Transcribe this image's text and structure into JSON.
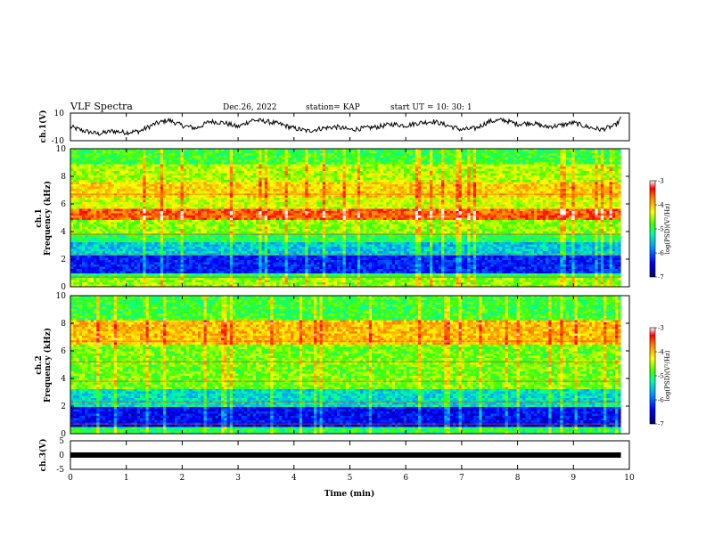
{
  "header": {
    "title": "VLF Spectra",
    "date": "Dec.26, 2022",
    "station": "station= KAP",
    "start": "start  UT  =    10: 30: 1"
  },
  "colors": {
    "spectrum": [
      "#000066",
      "#0000ff",
      "#0090ff",
      "#00e0e0",
      "#00ff60",
      "#80ff00",
      "#ffff00",
      "#ffa000",
      "#ff0000",
      "#ffffff"
    ]
  },
  "chart_data": [
    {
      "type": "line",
      "ylabel": "ch.1(V)",
      "xlim": [
        0,
        10
      ],
      "ylim": [
        -10,
        10
      ],
      "y_ticks": [
        "10",
        "-10"
      ],
      "series": [
        {
          "x": [
            0,
            0.25,
            0.5,
            0.75,
            1.0,
            1.25,
            1.5,
            1.75,
            2.0,
            2.25,
            2.5,
            2.75,
            3.0,
            3.25,
            3.5,
            3.75,
            4.0,
            4.25,
            4.5,
            4.75,
            5.0,
            5.25,
            5.5,
            5.75,
            6.0,
            6.25,
            6.5,
            6.75,
            7.0,
            7.25,
            7.5,
            7.75,
            8.0,
            8.25,
            8.5,
            8.75,
            9.0,
            9.25,
            9.5,
            9.75,
            9.85
          ],
          "values": [
            0,
            -3,
            -5,
            -3,
            -4,
            -3,
            2,
            5,
            1,
            -1,
            4,
            3,
            0,
            5,
            4,
            2,
            -1,
            -3,
            -1,
            0,
            -2,
            -1,
            0,
            2,
            1,
            3,
            4,
            1,
            -2,
            -1,
            4,
            5,
            2,
            3,
            0,
            1,
            3,
            0,
            -2,
            1,
            6
          ]
        }
      ]
    },
    {
      "type": "heatmap",
      "ylabel": "ch.1\nFrequency (kHz)",
      "xlim": [
        0,
        10
      ],
      "ylim": [
        0,
        10
      ],
      "y_ticks": [
        "0",
        "2",
        "4",
        "6",
        "8",
        "10"
      ],
      "colorbar": {
        "label": "log(PSD)(V²/Hz)",
        "ticks": [
          "-3",
          "-4",
          "-5",
          "-6",
          "-7"
        ],
        "range": [
          -7,
          -3
        ]
      },
      "bands": [
        {
          "f": [
            0.0,
            0.6
          ],
          "level": -4.6
        },
        {
          "f": [
            0.6,
            1.0
          ],
          "level": -5.0
        },
        {
          "f": [
            1.0,
            2.2
          ],
          "level": -6.3
        },
        {
          "f": [
            2.2,
            3.3
          ],
          "level": -5.5
        },
        {
          "f": [
            3.3,
            3.9
          ],
          "level": -5.0
        },
        {
          "f": [
            3.9,
            4.8
          ],
          "level": -4.6
        },
        {
          "f": [
            4.8,
            5.6
          ],
          "level": -3.6
        },
        {
          "f": [
            5.6,
            6.5
          ],
          "level": -4.4
        },
        {
          "f": [
            6.5,
            7.5
          ],
          "level": -4.1
        },
        {
          "f": [
            7.5,
            8.8
          ],
          "level": -4.5
        },
        {
          "f": [
            8.8,
            10.0
          ],
          "level": -4.9
        }
      ]
    },
    {
      "type": "heatmap",
      "ylabel": "ch.2\nFrequency (kHz)",
      "xlim": [
        0,
        10
      ],
      "ylim": [
        0,
        10
      ],
      "y_ticks": [
        "0",
        "2",
        "4",
        "6",
        "8",
        "10"
      ],
      "colorbar": {
        "label": "log(PSD)(V²/Hz)",
        "ticks": [
          "-3",
          "-4",
          "-5",
          "-6",
          "-7"
        ],
        "range": [
          -7,
          -3
        ]
      },
      "bands": [
        {
          "f": [
            0.0,
            0.5
          ],
          "level": -5.0
        },
        {
          "f": [
            0.5,
            2.0
          ],
          "level": -6.4
        },
        {
          "f": [
            2.0,
            3.3
          ],
          "level": -5.4
        },
        {
          "f": [
            3.3,
            6.5
          ],
          "level": -4.7
        },
        {
          "f": [
            6.5,
            8.2
          ],
          "level": -4.0
        },
        {
          "f": [
            8.2,
            10.0
          ],
          "level": -4.9
        }
      ]
    },
    {
      "type": "line",
      "ylabel": "ch.3(V)",
      "xlabel": "Time  (min)",
      "xlim": [
        0,
        10
      ],
      "ylim": [
        -5,
        5
      ],
      "y_ticks": [
        "5",
        "0",
        "-5"
      ],
      "x_ticks": [
        "0",
        "1",
        "2",
        "3",
        "4",
        "5",
        "6",
        "7",
        "8",
        "9",
        "10"
      ],
      "series": [
        {
          "x": [
            0,
            9.85
          ],
          "values": [
            0,
            0
          ]
        }
      ]
    }
  ]
}
